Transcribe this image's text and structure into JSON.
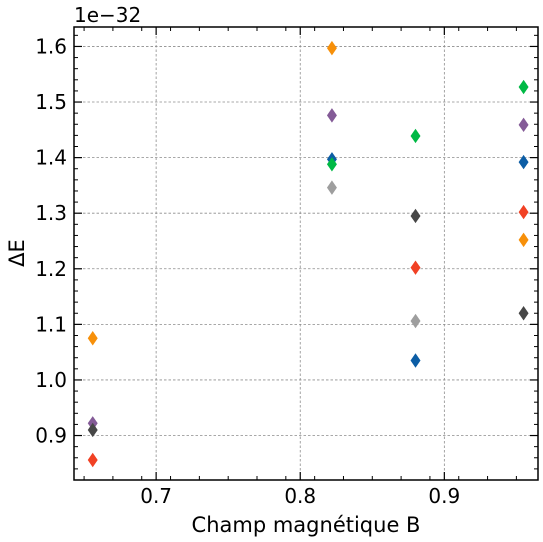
{
  "chart_data": {
    "type": "scatter",
    "title": "",
    "xlabel": "Champ magnétique B",
    "ylabel": "ΔE",
    "offset_text": "1e−32",
    "xlim": [
      0.643,
      0.965
    ],
    "ylim": [
      0.82,
      1.635
    ],
    "grid": true,
    "marker": "diamond",
    "x_ticks": [
      {
        "value": 0.7,
        "label": "0.7"
      },
      {
        "value": 0.8,
        "label": "0.8"
      },
      {
        "value": 0.9,
        "label": "0.9"
      }
    ],
    "y_ticks": [
      {
        "value": 0.9,
        "label": "0.9"
      },
      {
        "value": 1.0,
        "label": "1.0"
      },
      {
        "value": 1.1,
        "label": "1.1"
      },
      {
        "value": 1.2,
        "label": "1.2"
      },
      {
        "value": 1.3,
        "label": "1.3"
      },
      {
        "value": 1.4,
        "label": "1.4"
      },
      {
        "value": 1.5,
        "label": "1.5"
      },
      {
        "value": 1.6,
        "label": "1.6"
      }
    ],
    "series": [
      {
        "name": "orange",
        "color": "#f7900a",
        "points": [
          [
            0.656,
            1.075
          ],
          [
            0.822,
            1.597
          ],
          [
            0.955,
            1.252
          ]
        ]
      },
      {
        "name": "purple",
        "color": "#845b97",
        "points": [
          [
            0.656,
            0.922
          ],
          [
            0.822,
            1.476
          ],
          [
            0.955,
            1.459
          ]
        ]
      },
      {
        "name": "dark-gray",
        "color": "#474747",
        "points": [
          [
            0.656,
            0.91
          ],
          [
            0.88,
            1.295
          ],
          [
            0.955,
            1.12
          ]
        ]
      },
      {
        "name": "red",
        "color": "#f14124",
        "points": [
          [
            0.656,
            0.856
          ],
          [
            0.88,
            1.202
          ],
          [
            0.955,
            1.302
          ]
        ]
      },
      {
        "name": "blue",
        "color": "#0c5da5",
        "points": [
          [
            0.822,
            1.397
          ],
          [
            0.88,
            1.035
          ],
          [
            0.955,
            1.392
          ]
        ]
      },
      {
        "name": "green",
        "color": "#00b945",
        "points": [
          [
            0.822,
            1.388
          ],
          [
            0.88,
            1.439
          ],
          [
            0.955,
            1.527
          ]
        ]
      },
      {
        "name": "light-gray",
        "color": "#9e9e9e",
        "points": [
          [
            0.822,
            1.346
          ],
          [
            0.88,
            1.106
          ]
        ]
      }
    ]
  }
}
